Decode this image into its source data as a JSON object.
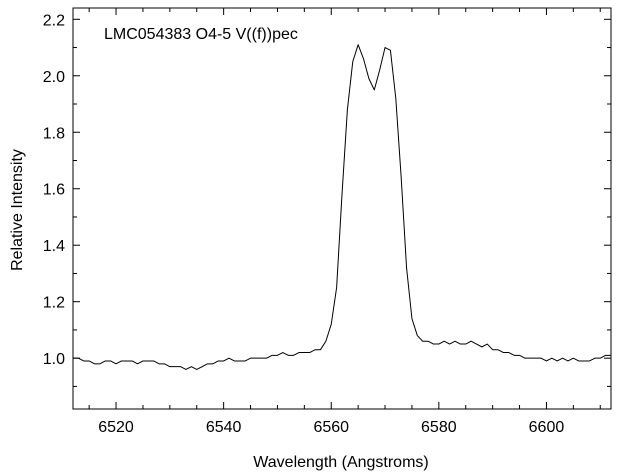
{
  "chart_data": {
    "type": "line",
    "title": "LMC054383 O4-5 V((f))pec",
    "xlabel": "Wavelength (Angstroms)",
    "ylabel": "Relative Intensity",
    "xlim": [
      6512,
      6612
    ],
    "ylim": [
      0.82,
      2.24
    ],
    "x_ticks": [
      6520,
      6540,
      6560,
      6580,
      6600
    ],
    "x_tick_labels": [
      "6520",
      "6540",
      "6560",
      "6580",
      "6600"
    ],
    "x_minor_step": 5,
    "y_ticks": [
      1.0,
      1.2,
      1.4,
      1.6,
      1.8,
      2.0,
      2.2
    ],
    "y_tick_labels": [
      "1.0",
      "1.2",
      "1.4",
      "1.6",
      "1.8",
      "2.0",
      "2.2"
    ],
    "y_minor_step": 0.1,
    "grid": false,
    "legend": "none",
    "series": [
      {
        "x": [
          6512,
          6513,
          6514,
          6515,
          6516,
          6517,
          6518,
          6519,
          6520,
          6521,
          6522,
          6523,
          6524,
          6525,
          6526,
          6527,
          6528,
          6529,
          6530,
          6531,
          6532,
          6533,
          6534,
          6535,
          6536,
          6537,
          6538,
          6539,
          6540,
          6541,
          6542,
          6543,
          6544,
          6545,
          6546,
          6547,
          6548,
          6549,
          6550,
          6551,
          6552,
          6553,
          6554,
          6555,
          6556,
          6557,
          6558,
          6559,
          6560,
          6561,
          6562,
          6563,
          6564,
          6565,
          6566,
          6567,
          6568,
          6569,
          6570,
          6571,
          6572,
          6573,
          6574,
          6575,
          6576,
          6577,
          6578,
          6579,
          6580,
          6581,
          6582,
          6583,
          6584,
          6585,
          6586,
          6587,
          6588,
          6589,
          6590,
          6591,
          6592,
          6593,
          6594,
          6595,
          6596,
          6597,
          6598,
          6599,
          6600,
          6601,
          6602,
          6603,
          6604,
          6605,
          6606,
          6607,
          6608,
          6609,
          6610,
          6611,
          6612
        ],
        "values": [
          1.0,
          1.0,
          0.99,
          0.99,
          0.98,
          0.98,
          0.99,
          0.99,
          0.98,
          0.99,
          0.99,
          0.99,
          0.98,
          0.99,
          0.99,
          0.99,
          0.98,
          0.98,
          0.97,
          0.97,
          0.97,
          0.96,
          0.97,
          0.96,
          0.97,
          0.98,
          0.98,
          0.99,
          0.99,
          1.0,
          0.99,
          0.99,
          0.99,
          1.0,
          1.0,
          1.0,
          1.0,
          1.01,
          1.01,
          1.02,
          1.01,
          1.01,
          1.02,
          1.02,
          1.02,
          1.03,
          1.03,
          1.06,
          1.12,
          1.25,
          1.58,
          1.88,
          2.05,
          2.11,
          2.06,
          1.99,
          1.95,
          2.02,
          2.1,
          2.09,
          1.92,
          1.64,
          1.32,
          1.14,
          1.08,
          1.06,
          1.06,
          1.05,
          1.05,
          1.06,
          1.05,
          1.06,
          1.05,
          1.05,
          1.06,
          1.05,
          1.04,
          1.05,
          1.03,
          1.03,
          1.02,
          1.02,
          1.01,
          1.01,
          1.0,
          1.0,
          1.0,
          1.0,
          0.99,
          1.0,
          0.99,
          1.0,
          0.99,
          1.0,
          0.99,
          0.99,
          0.99,
          1.0,
          1.0,
          1.01,
          1.01
        ]
      }
    ]
  }
}
